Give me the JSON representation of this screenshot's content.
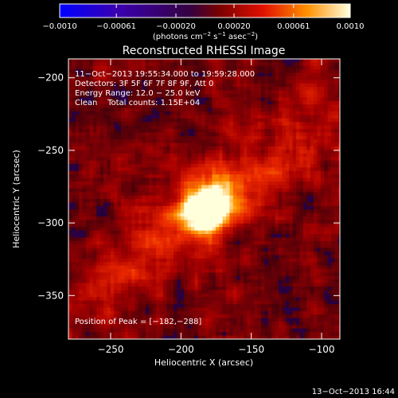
{
  "chart_data": {
    "type": "heatmap",
    "title": "Reconstructed RHESSI Image",
    "xlabel": "Heliocentric X (arcsec)",
    "ylabel": "Heliocentric Y (arcsec)",
    "xlim": [
      -280,
      -87
    ],
    "ylim": [
      -380,
      -187
    ],
    "xticks": [
      -250,
      -200,
      -150,
      -100
    ],
    "xtick_labels": [
      "−250",
      "−200",
      "−150",
      "−100"
    ],
    "yticks": [
      -200,
      -250,
      -300,
      -350
    ],
    "ytick_labels": [
      "−200",
      "−250",
      "−300",
      "−350"
    ],
    "colorbar": {
      "min": -0.001,
      "max": 0.001,
      "ticks": [
        -0.001,
        -0.00061,
        -0.0002,
        0.0002,
        0.00061,
        0.001
      ],
      "tick_labels": [
        "−0.0010",
        "−0.00061",
        "−0.00020",
        "0.00020",
        "0.00061",
        "0.0010"
      ],
      "label_html": "(photons cm<tspan dy=\"-4\" font-size=\"7\">−2</tspan><tspan dy=\"4\"> s</tspan><tspan dy=\"-4\" font-size=\"7\">−1</tspan><tspan dy=\"4\"> asec</tspan><tspan dy=\"-4\" font-size=\"7\">−2</tspan><tspan dy=\"4\">)</tspan>"
    },
    "peak": {
      "x": -182,
      "y": -288
    },
    "annotations": [
      "11−Oct−2013 19:55:34.000 to 19:59:28.000",
      "Detectors: 3F 5F 6F 7F 8F 9F, Att 0",
      "Energy Range: 12.0 − 25.0 keV",
      "Clean    Total counts: 1.15E+04"
    ],
    "peak_label": "Position of Peak = [−182,−288]",
    "grid": false
  },
  "footer": {
    "timestamp": "13−Oct−2013 16:44"
  }
}
